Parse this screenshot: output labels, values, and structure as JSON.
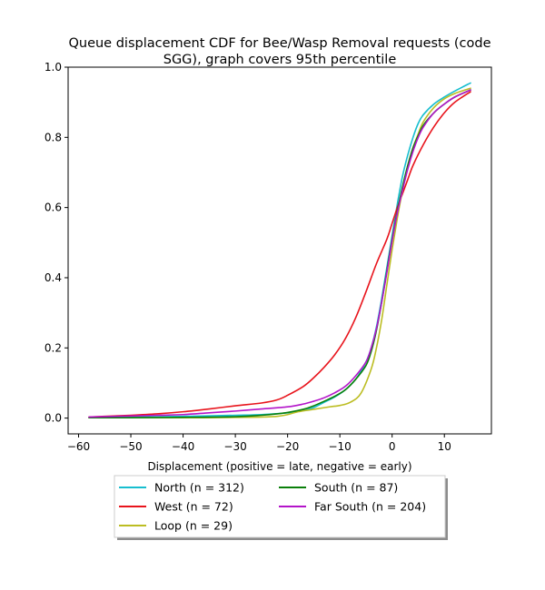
{
  "chart_data": {
    "type": "line",
    "title_line1": "Queue displacement CDF for Bee/Wasp Removal  requests (code",
    "title_line2": "SGG), graph covers 95th percentile",
    "xlabel": "Displacement (positive = late, negative = early)",
    "ylabel": "",
    "xlim": [
      -62,
      19
    ],
    "ylim": [
      -0.045,
      1.0
    ],
    "xticks": [
      -60,
      -50,
      -40,
      -30,
      -20,
      -10,
      0,
      10
    ],
    "yticks": [
      0.0,
      0.2,
      0.4,
      0.6,
      0.8,
      1.0
    ],
    "xtick_labels": [
      "−60",
      "−50",
      "−40",
      "−30",
      "−20",
      "−10",
      "0",
      "10"
    ],
    "ytick_labels": [
      "0.0",
      "0.2",
      "0.4",
      "0.6",
      "0.8",
      "1.0"
    ],
    "grid": false,
    "legend_position": "below plot, two columns",
    "series": [
      {
        "name": "North (n = 312)",
        "color": "#17becf",
        "points": [
          [
            -58,
            0.002
          ],
          [
            -50,
            0.003
          ],
          [
            -40,
            0.005
          ],
          [
            -30,
            0.008
          ],
          [
            -25,
            0.01
          ],
          [
            -20,
            0.015
          ],
          [
            -17,
            0.022
          ],
          [
            -15,
            0.03
          ],
          [
            -13,
            0.045
          ],
          [
            -11,
            0.06
          ],
          [
            -9,
            0.08
          ],
          [
            -7,
            0.11
          ],
          [
            -5,
            0.16
          ],
          [
            -4,
            0.2
          ],
          [
            -3,
            0.26
          ],
          [
            -2,
            0.34
          ],
          [
            -1,
            0.43
          ],
          [
            0,
            0.52
          ],
          [
            1,
            0.61
          ],
          [
            2,
            0.69
          ],
          [
            3,
            0.75
          ],
          [
            4,
            0.8
          ],
          [
            5,
            0.84
          ],
          [
            6,
            0.865
          ],
          [
            8,
            0.895
          ],
          [
            10,
            0.915
          ],
          [
            12,
            0.932
          ],
          [
            15,
            0.955
          ]
        ]
      },
      {
        "name": "West (n = 72)",
        "color": "#e8141c",
        "points": [
          [
            -58,
            0.003
          ],
          [
            -55,
            0.005
          ],
          [
            -50,
            0.008
          ],
          [
            -45,
            0.012
          ],
          [
            -40,
            0.018
          ],
          [
            -35,
            0.026
          ],
          [
            -30,
            0.035
          ],
          [
            -25,
            0.043
          ],
          [
            -22,
            0.052
          ],
          [
            -20,
            0.065
          ],
          [
            -17,
            0.09
          ],
          [
            -15,
            0.115
          ],
          [
            -13,
            0.145
          ],
          [
            -11,
            0.18
          ],
          [
            -9,
            0.225
          ],
          [
            -7,
            0.285
          ],
          [
            -5,
            0.36
          ],
          [
            -3,
            0.44
          ],
          [
            -1,
            0.51
          ],
          [
            0,
            0.555
          ],
          [
            1,
            0.6
          ],
          [
            2,
            0.64
          ],
          [
            3,
            0.68
          ],
          [
            4,
            0.72
          ],
          [
            6,
            0.78
          ],
          [
            8,
            0.83
          ],
          [
            10,
            0.87
          ],
          [
            12,
            0.9
          ],
          [
            15,
            0.93
          ]
        ]
      },
      {
        "name": "Loop (n = 29)",
        "color": "#bcbd22",
        "points": [
          [
            -58,
            0.001
          ],
          [
            -45,
            0.001
          ],
          [
            -35,
            0.001
          ],
          [
            -30,
            0.002
          ],
          [
            -25,
            0.003
          ],
          [
            -22,
            0.005
          ],
          [
            -20,
            0.01
          ],
          [
            -18,
            0.018
          ],
          [
            -15,
            0.025
          ],
          [
            -12,
            0.032
          ],
          [
            -10,
            0.036
          ],
          [
            -8,
            0.045
          ],
          [
            -6,
            0.07
          ],
          [
            -4,
            0.14
          ],
          [
            -3,
            0.2
          ],
          [
            -2,
            0.28
          ],
          [
            -1,
            0.38
          ],
          [
            0,
            0.48
          ],
          [
            1,
            0.57
          ],
          [
            2,
            0.65
          ],
          [
            3,
            0.72
          ],
          [
            4,
            0.77
          ],
          [
            5,
            0.81
          ],
          [
            6,
            0.845
          ],
          [
            8,
            0.885
          ],
          [
            10,
            0.91
          ],
          [
            12,
            0.925
          ],
          [
            15,
            0.94
          ]
        ]
      },
      {
        "name": "South (n = 87)",
        "color": "#0a7f0a",
        "points": [
          [
            -58,
            0.001
          ],
          [
            -50,
            0.001
          ],
          [
            -40,
            0.002
          ],
          [
            -30,
            0.004
          ],
          [
            -25,
            0.008
          ],
          [
            -22,
            0.012
          ],
          [
            -20,
            0.016
          ],
          [
            -17,
            0.025
          ],
          [
            -15,
            0.035
          ],
          [
            -13,
            0.048
          ],
          [
            -11,
            0.062
          ],
          [
            -9,
            0.08
          ],
          [
            -7,
            0.11
          ],
          [
            -5,
            0.15
          ],
          [
            -4,
            0.19
          ],
          [
            -3,
            0.25
          ],
          [
            -2,
            0.33
          ],
          [
            -1,
            0.42
          ],
          [
            0,
            0.51
          ],
          [
            1,
            0.59
          ],
          [
            2,
            0.66
          ],
          [
            3,
            0.72
          ],
          [
            4,
            0.77
          ],
          [
            5,
            0.805
          ],
          [
            6,
            0.835
          ],
          [
            8,
            0.87
          ],
          [
            10,
            0.895
          ],
          [
            12,
            0.915
          ],
          [
            15,
            0.935
          ]
        ]
      },
      {
        "name": "Far South (n = 204)",
        "color": "#b314c9",
        "points": [
          [
            -58,
            0.003
          ],
          [
            -50,
            0.006
          ],
          [
            -45,
            0.008
          ],
          [
            -40,
            0.01
          ],
          [
            -35,
            0.015
          ],
          [
            -30,
            0.02
          ],
          [
            -25,
            0.026
          ],
          [
            -20,
            0.032
          ],
          [
            -17,
            0.04
          ],
          [
            -15,
            0.048
          ],
          [
            -13,
            0.058
          ],
          [
            -11,
            0.072
          ],
          [
            -9,
            0.09
          ],
          [
            -7,
            0.12
          ],
          [
            -5,
            0.16
          ],
          [
            -4,
            0.2
          ],
          [
            -3,
            0.255
          ],
          [
            -2,
            0.33
          ],
          [
            -1,
            0.415
          ],
          [
            0,
            0.505
          ],
          [
            1,
            0.585
          ],
          [
            2,
            0.65
          ],
          [
            3,
            0.71
          ],
          [
            4,
            0.76
          ],
          [
            5,
            0.8
          ],
          [
            6,
            0.83
          ],
          [
            8,
            0.87
          ],
          [
            10,
            0.895
          ],
          [
            12,
            0.915
          ],
          [
            15,
            0.935
          ]
        ]
      }
    ],
    "legend_order": [
      0,
      1,
      2,
      3,
      4
    ]
  }
}
